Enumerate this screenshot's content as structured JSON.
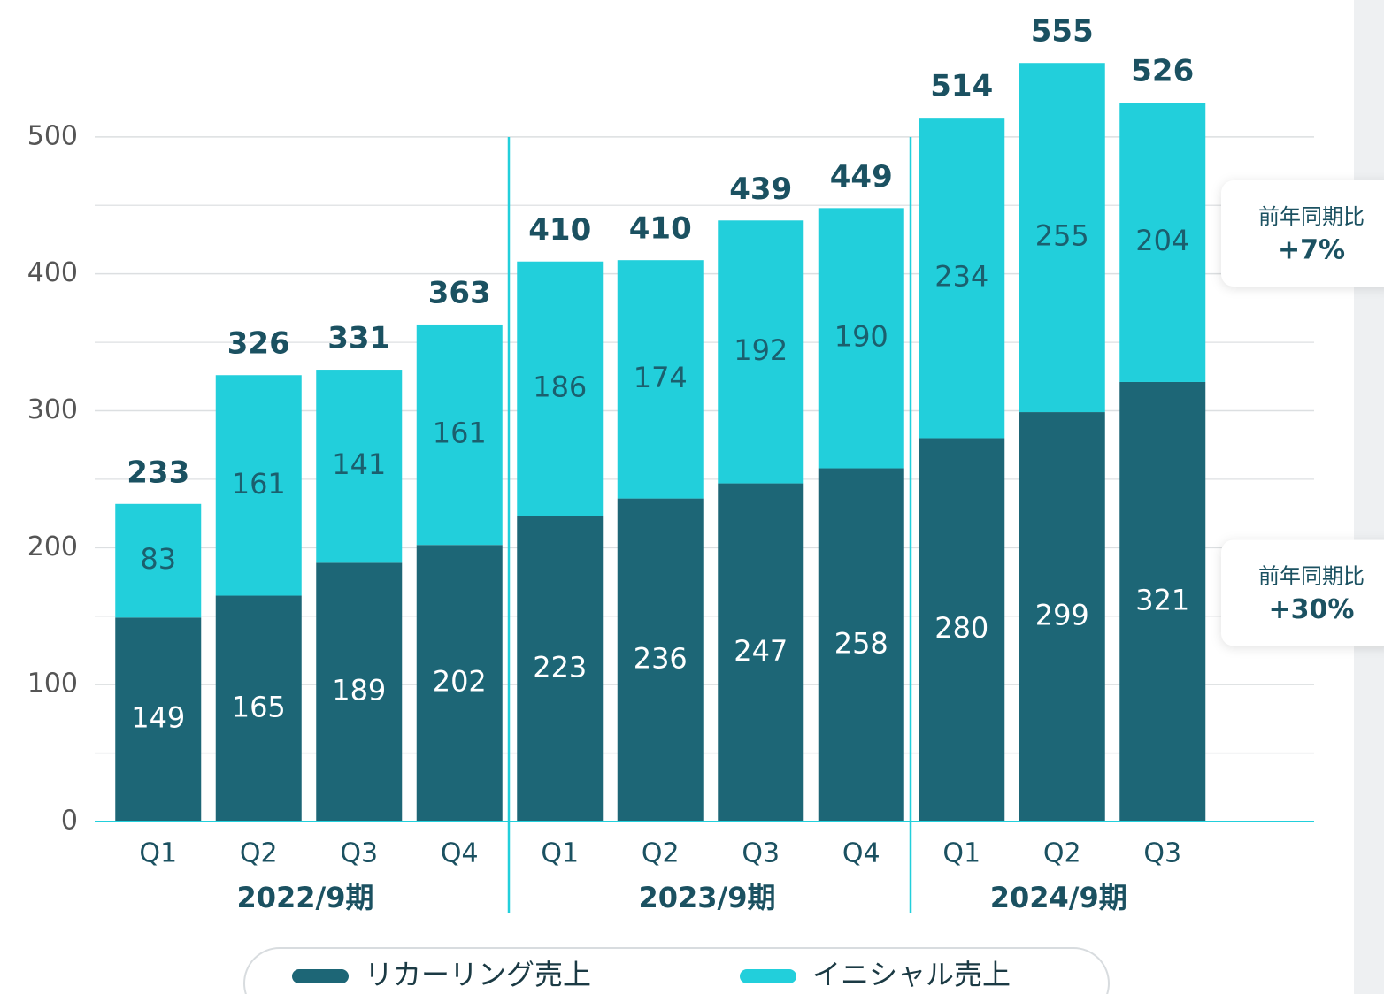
{
  "chart_data": {
    "type": "stacked_bar",
    "categories": [
      "Q1",
      "Q2",
      "Q3",
      "Q4",
      "Q1",
      "Q2",
      "Q3",
      "Q4",
      "Q1",
      "Q2",
      "Q3"
    ],
    "groups": [
      {
        "label": "2022/9期",
        "span": 4
      },
      {
        "label": "2023/9期",
        "span": 4
      },
      {
        "label": "2024/9期",
        "span": 3
      }
    ],
    "series": [
      {
        "name": "リカーリング売上",
        "color": "#1d6676",
        "values": [
          149,
          165,
          189,
          202,
          223,
          236,
          247,
          258,
          280,
          299,
          321
        ]
      },
      {
        "name": "イニシャル売上",
        "color": "#22cfdb",
        "values": [
          83,
          161,
          141,
          161,
          186,
          174,
          192,
          190,
          234,
          255,
          204
        ]
      }
    ],
    "totals": [
      233,
      326,
      331,
      363,
      410,
      410,
      439,
      449,
      514,
      555,
      526
    ],
    "ylim": [
      0,
      600
    ],
    "yticks": [
      0,
      100,
      200,
      300,
      400,
      500
    ],
    "minor_grid": [
      50,
      150,
      250,
      350,
      450
    ],
    "grid": true,
    "annotations": [
      {
        "title": "前年同期比",
        "text": "+7%",
        "series": 1
      },
      {
        "title": "前年同期比",
        "text": "+30%",
        "series": 0
      }
    ]
  }
}
